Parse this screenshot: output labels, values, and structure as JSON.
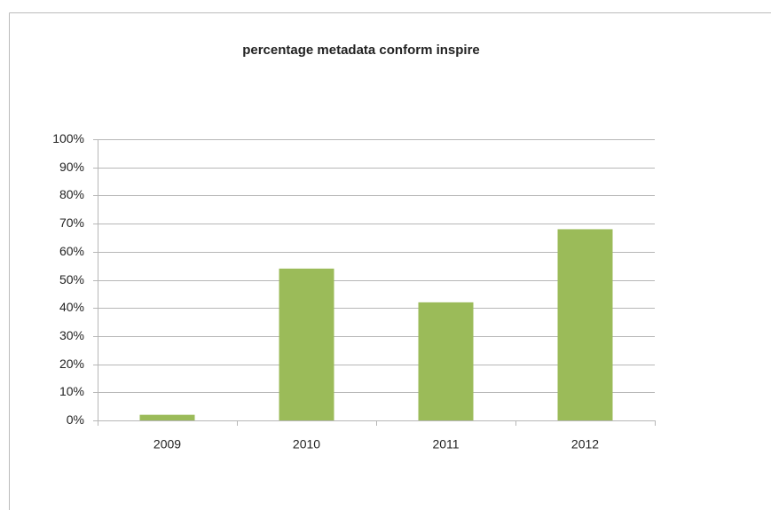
{
  "chart_data": {
    "type": "bar",
    "title": "percentage  metadata conform inspire",
    "categories": [
      "2009",
      "2010",
      "2011",
      "2012"
    ],
    "values": [
      2,
      54,
      42,
      68
    ],
    "color": "#9bbb59",
    "ylim": [
      0,
      100
    ],
    "yticks": [
      {
        "value": 0,
        "label": "0%"
      },
      {
        "value": 10,
        "label": "10%"
      },
      {
        "value": 20,
        "label": "20%"
      },
      {
        "value": 30,
        "label": "30%"
      },
      {
        "value": 40,
        "label": "40%"
      },
      {
        "value": 50,
        "label": "50%"
      },
      {
        "value": 60,
        "label": "60%"
      },
      {
        "value": 70,
        "label": "70%"
      },
      {
        "value": 80,
        "label": "80%"
      },
      {
        "value": 90,
        "label": "90%"
      },
      {
        "value": 100,
        "label": "100%"
      }
    ],
    "grid": true
  }
}
